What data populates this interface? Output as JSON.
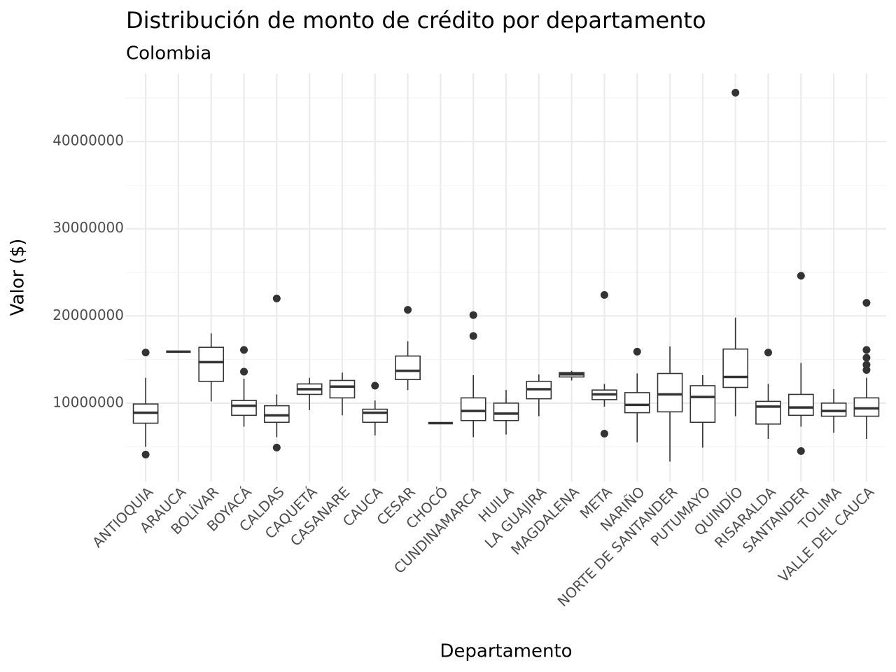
{
  "chart_data": {
    "type": "box",
    "title": "Distribución de monto de crédito por departamento",
    "subtitle": "Colombia",
    "x_label": "Departamento",
    "y_label": "Valor ($)",
    "categories": [
      "ANTIOQUIA",
      "ARAUCA",
      "BOLÍVAR",
      "BOYACÁ",
      "CALDAS",
      "CAQUETÁ",
      "CASANARE",
      "CAUCA",
      "CESAR",
      "CHOCÓ",
      "CUNDINAMARCA",
      "HUILA",
      "LA GUAJIRA",
      "MAGDALENA",
      "META",
      "NARIÑO",
      "NORTE DE SANTANDER",
      "PUTUMAYO",
      "QUINDÍO",
      "RISARALDA",
      "SANTANDER",
      "TOLIMA",
      "VALLE DEL CAUCA"
    ],
    "boxes": [
      {
        "low": 5000000,
        "q1": 7700000,
        "median": 8900000,
        "q3": 9900000,
        "high": 12900000,
        "outliers": [
          4100000,
          15800000
        ]
      },
      {
        "low": 15900000,
        "q1": 15900000,
        "median": 15900000,
        "q3": 15900000,
        "high": 15900000,
        "outliers": []
      },
      {
        "low": 10200000,
        "q1": 12500000,
        "median": 14700000,
        "q3": 16400000,
        "high": 18000000,
        "outliers": []
      },
      {
        "low": 7300000,
        "q1": 8600000,
        "median": 9700000,
        "q3": 10300000,
        "high": 12800000,
        "outliers": [
          13600000,
          16100000
        ]
      },
      {
        "low": 6100000,
        "q1": 7800000,
        "median": 8600000,
        "q3": 9700000,
        "high": 11000000,
        "outliers": [
          4900000,
          22000000
        ]
      },
      {
        "low": 9200000,
        "q1": 11000000,
        "median": 11600000,
        "q3": 12200000,
        "high": 12900000,
        "outliers": []
      },
      {
        "low": 8600000,
        "q1": 10600000,
        "median": 11900000,
        "q3": 12600000,
        "high": 13500000,
        "outliers": []
      },
      {
        "low": 6300000,
        "q1": 7800000,
        "median": 8900000,
        "q3": 9300000,
        "high": 10300000,
        "outliers": [
          12000000
        ]
      },
      {
        "low": 11500000,
        "q1": 12700000,
        "median": 13700000,
        "q3": 15400000,
        "high": 17100000,
        "outliers": [
          20700000
        ]
      },
      {
        "low": 7700000,
        "q1": 7700000,
        "median": 7700000,
        "q3": 7700000,
        "high": 7700000,
        "outliers": []
      },
      {
        "low": 6100000,
        "q1": 8000000,
        "median": 9100000,
        "q3": 10600000,
        "high": 13200000,
        "outliers": [
          17700000,
          20100000
        ]
      },
      {
        "low": 6400000,
        "q1": 8000000,
        "median": 8800000,
        "q3": 10000000,
        "high": 11500000,
        "outliers": []
      },
      {
        "low": 8500000,
        "q1": 10500000,
        "median": 11600000,
        "q3": 12500000,
        "high": 13300000,
        "outliers": []
      },
      {
        "low": 12600000,
        "q1": 13000000,
        "median": 13300000,
        "q3": 13500000,
        "high": 13700000,
        "outliers": []
      },
      {
        "low": 9600000,
        "q1": 10400000,
        "median": 11000000,
        "q3": 11500000,
        "high": 12200000,
        "outliers": [
          6500000,
          22400000
        ]
      },
      {
        "low": 5500000,
        "q1": 8900000,
        "median": 9800000,
        "q3": 11200000,
        "high": 13400000,
        "outliers": [
          15900000
        ]
      },
      {
        "low": 3300000,
        "q1": 9000000,
        "median": 11000000,
        "q3": 13400000,
        "high": 16500000,
        "outliers": []
      },
      {
        "low": 4900000,
        "q1": 7800000,
        "median": 10700000,
        "q3": 12000000,
        "high": 13200000,
        "outliers": []
      },
      {
        "low": 8500000,
        "q1": 11800000,
        "median": 13000000,
        "q3": 16200000,
        "high": 19800000,
        "outliers": [
          45600000
        ]
      },
      {
        "low": 5900000,
        "q1": 7600000,
        "median": 9600000,
        "q3": 10200000,
        "high": 12200000,
        "outliers": [
          15800000
        ]
      },
      {
        "low": 7300000,
        "q1": 8600000,
        "median": 9500000,
        "q3": 11000000,
        "high": 14600000,
        "outliers": [
          4500000,
          24600000
        ]
      },
      {
        "low": 6600000,
        "q1": 8500000,
        "median": 9100000,
        "q3": 10000000,
        "high": 11600000,
        "outliers": []
      },
      {
        "low": 5900000,
        "q1": 8500000,
        "median": 9400000,
        "q3": 10600000,
        "high": 12900000,
        "outliers": [
          13800000,
          14400000,
          15200000,
          16100000,
          21500000
        ]
      }
    ],
    "color": "#333333",
    "ylim": [
      1000000,
      47800000
    ],
    "yticks": [
      10000000,
      20000000,
      30000000,
      40000000
    ],
    "minor_yticks": [
      5000000,
      15000000,
      25000000,
      35000000,
      45000000
    ],
    "grid": true
  }
}
